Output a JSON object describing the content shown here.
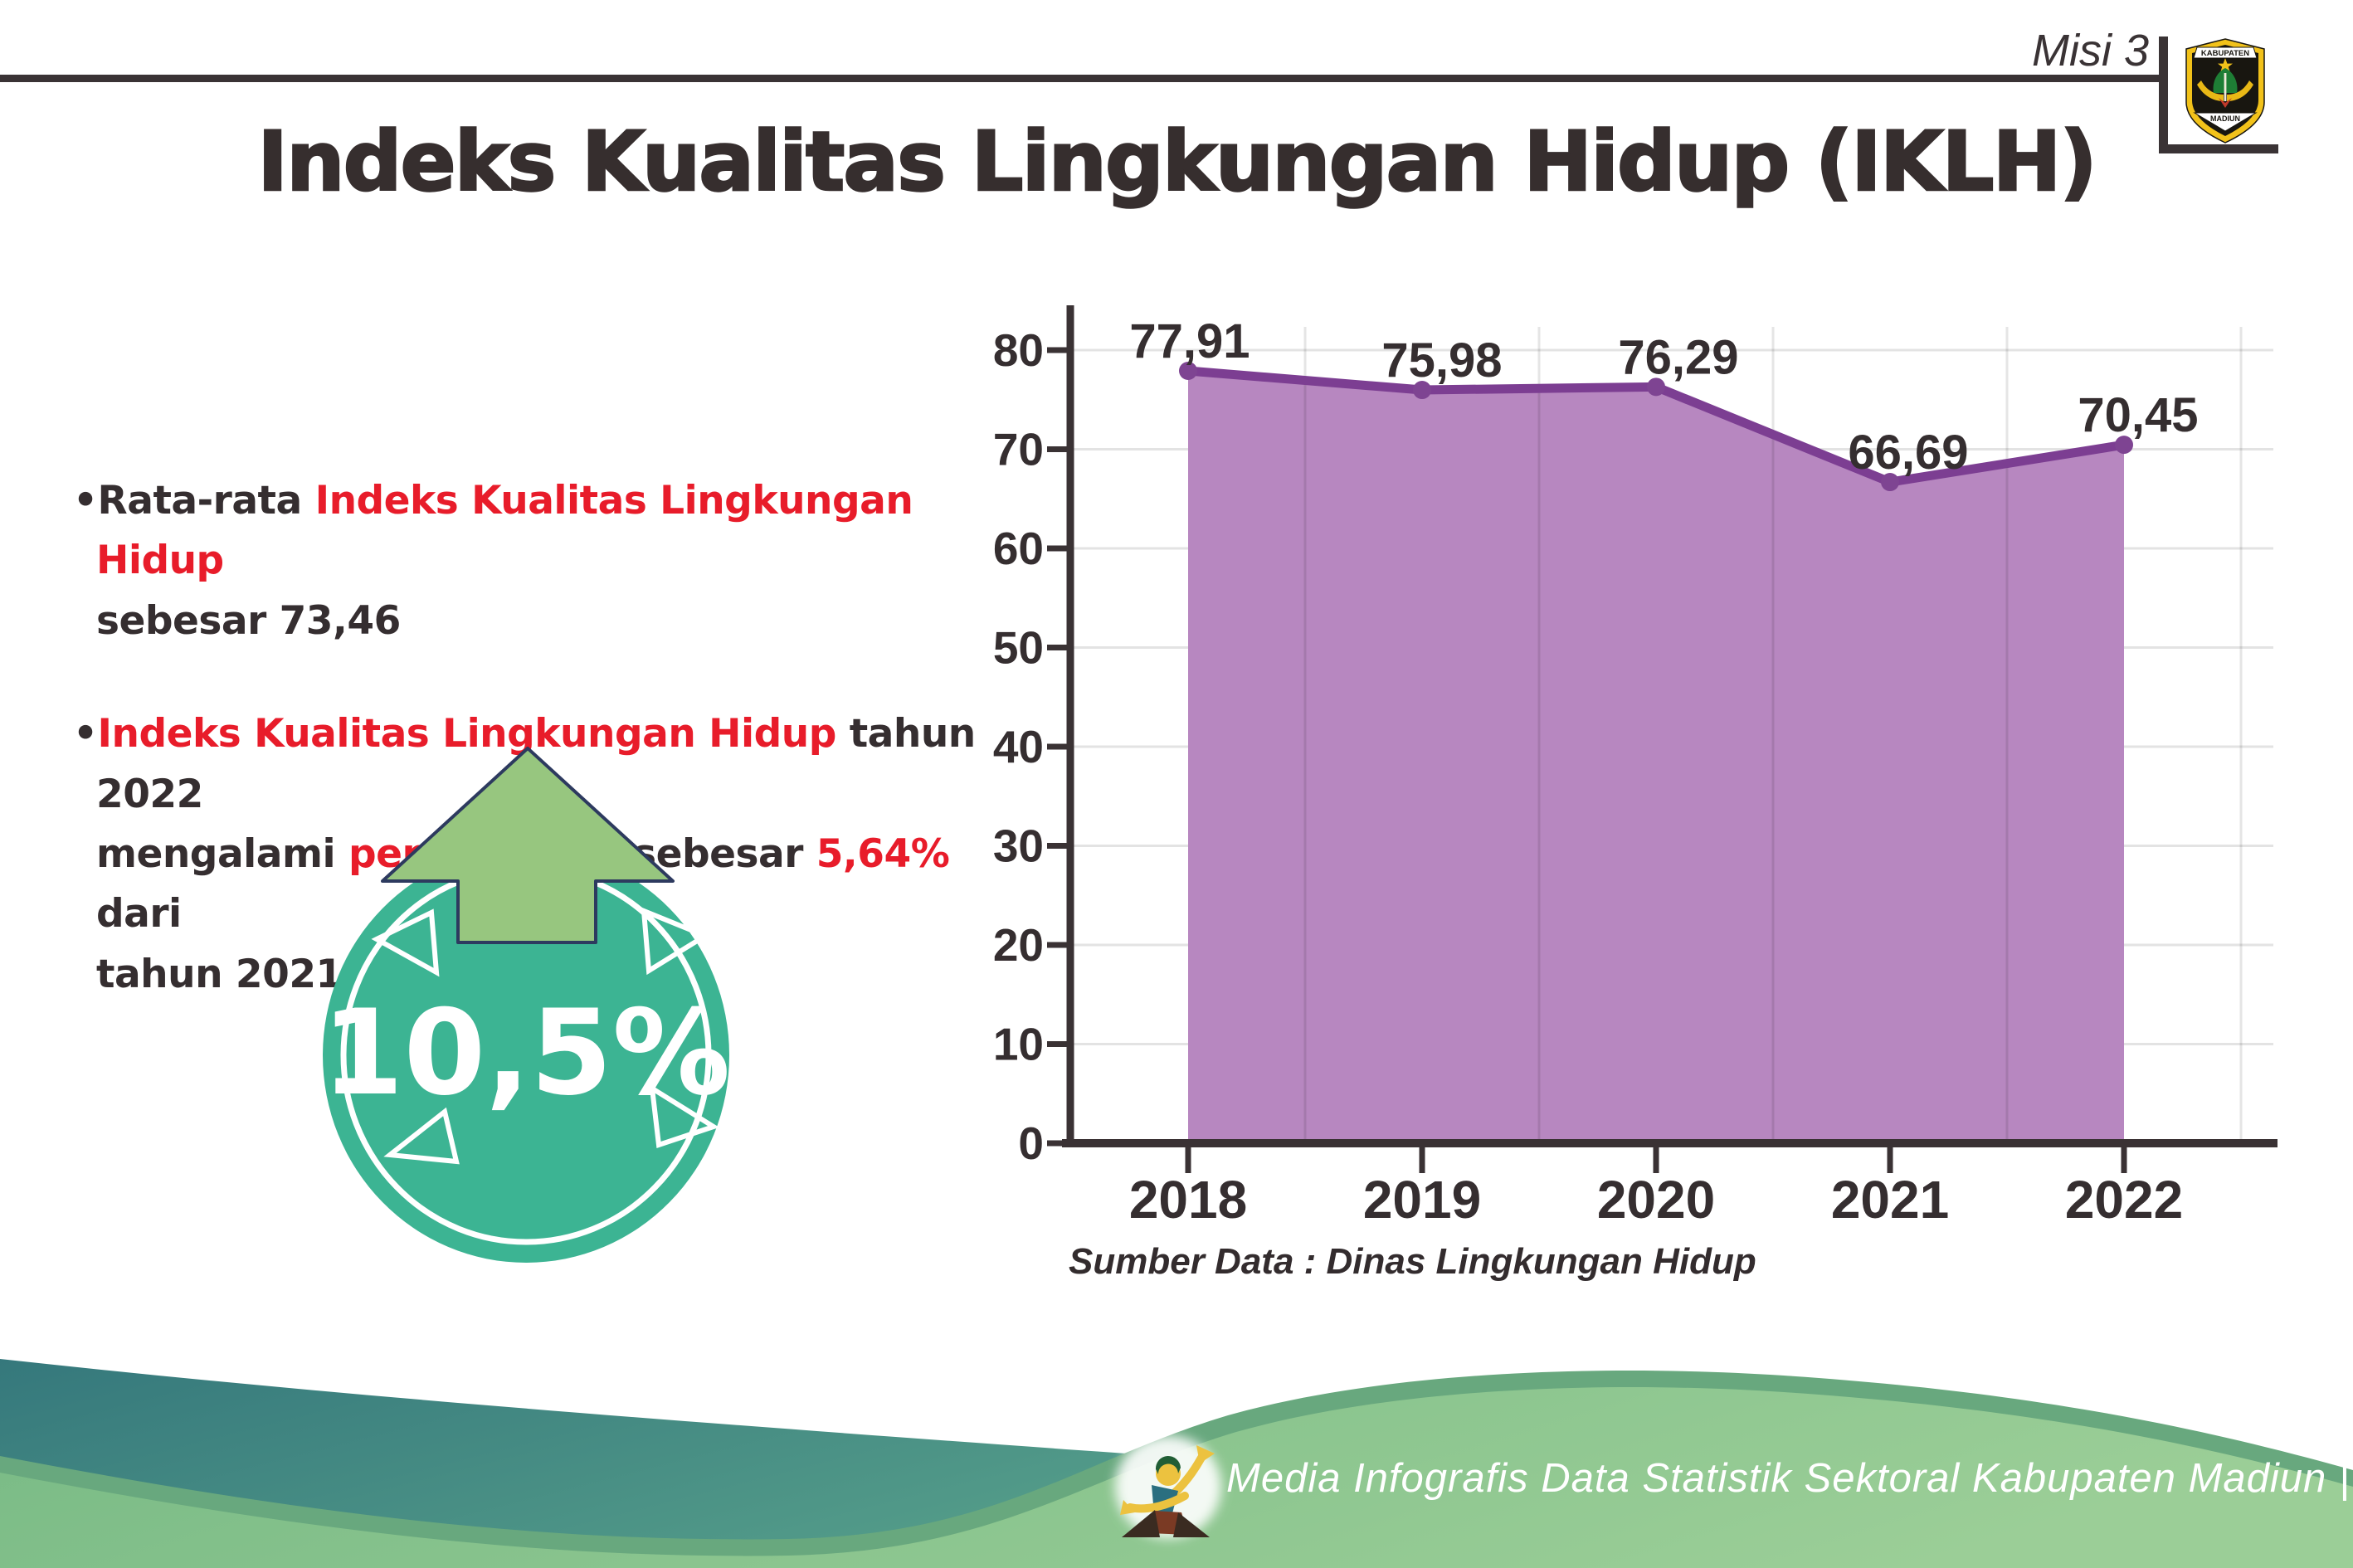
{
  "page": {
    "misi_label": "Misi 3"
  },
  "title": "Indeks Kualitas Lingkungan Hidup (IKLH)",
  "logo": {
    "top_text": "KABUPATEN",
    "bottom_text": "MADIUN"
  },
  "bullets": [
    {
      "segments": [
        {
          "text": "•Rata-rata ",
          "color": "dark"
        },
        {
          "text": "Indeks Kualitas Lingkungan Hidup",
          "color": "red"
        },
        {
          "br": true
        },
        {
          "text": "sebesar 73,46",
          "color": "dark"
        }
      ]
    },
    {
      "segments": [
        {
          "text": "•",
          "color": "dark"
        },
        {
          "text": "Indeks Kualitas Lingkungan Hidup",
          "color": "red"
        },
        {
          "text": " tahun 2022",
          "color": "dark"
        },
        {
          "br": true
        },
        {
          "text": "mengalami ",
          "color": "dark"
        },
        {
          "text": "peningkatan",
          "color": "red"
        },
        {
          "text": " sebesar ",
          "color": "dark"
        },
        {
          "text": "5,64%",
          "color": "red"
        },
        {
          "text": " dari",
          "color": "dark"
        },
        {
          "br": true
        },
        {
          "text": "tahun 2021",
          "color": "dark"
        }
      ]
    }
  ],
  "badge": {
    "value": "10,5%"
  },
  "chart_data": {
    "type": "area",
    "title": "",
    "categories": [
      "2018",
      "2019",
      "2020",
      "2021",
      "2022"
    ],
    "values": [
      77.91,
      75.98,
      76.29,
      66.69,
      70.45
    ],
    "value_labels": [
      "77,91",
      "75,98",
      "76,29",
      "66,69",
      "70,45"
    ],
    "xlabel": "",
    "ylabel": "",
    "ylim": [
      0,
      80
    ],
    "ytick_step": 10,
    "grid": true,
    "legend": false,
    "source_note": "Sumber Data : Dinas Lingkungan Hidup",
    "colors": {
      "area": "#b787c0",
      "line": "#7c3e92",
      "dot": "#7e4492",
      "axis": "#3a3234",
      "grid": "#e3e3e3",
      "label": "#352e30"
    }
  },
  "footer": {
    "text": "Media Infografis Data Statistik Sektoral Kabupaten Madiun |"
  },
  "theme": {
    "red": "#e81c2a",
    "dark_text": "#352e30",
    "badge_circle": "#3cb493",
    "badge_arrow": "#97c67f",
    "arrow_outline": "#2d3a5f",
    "wave_teal_dark": "#35787c",
    "wave_teal_light": "#65b191",
    "wave_green_left": "#78ba85",
    "wave_green_right": "#9bce97",
    "wave_green_edge": "#68a87e",
    "logo_gold": "#f2c21a"
  }
}
